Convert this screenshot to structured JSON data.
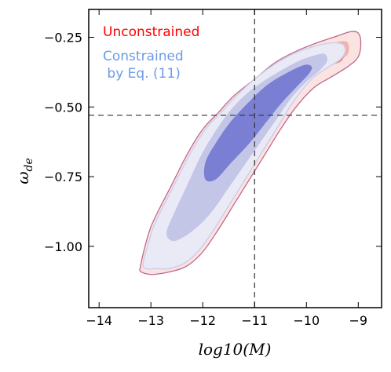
{
  "chart_data": {
    "type": "contour",
    "xlabel_base": "log10(",
    "xlabel_var": "M",
    "xlabel_close": ")",
    "ylabel_base": "ω",
    "ylabel_sub": "de",
    "xlim": [
      -14.2,
      -8.55
    ],
    "ylim": [
      -1.22,
      -0.15
    ],
    "xticks": [
      -14,
      -13,
      -12,
      -11,
      -10,
      -9
    ],
    "xtick_labels": [
      "−14",
      "−13",
      "−12",
      "−11",
      "−10",
      "−9"
    ],
    "yticks": [
      -0.25,
      -0.5,
      -0.75,
      -1.0
    ],
    "ytick_labels": [
      "−0.25",
      "−0.50",
      "−0.75",
      "−1.00"
    ],
    "reference_lines": {
      "x": -11.0,
      "y": -0.53
    },
    "legend": [
      {
        "label": "Unconstrained",
        "color": "#ff0000"
      },
      {
        "label_line1": "Constrained",
        "label_line2": " by Eq. (11)",
        "color": "#6d9be6"
      }
    ],
    "series": [
      {
        "legend_index": 0,
        "fill_colors": [
          "#fbe3e1",
          "#f6b1ad",
          "#ee8682"
        ],
        "edge_color": "#c0698d",
        "contours": [
          [
            [
              -13.2,
              -1.07
            ],
            [
              -13.1,
              -0.99
            ],
            [
              -13.0,
              -0.93
            ],
            [
              -12.85,
              -0.87
            ],
            [
              -12.6,
              -0.78
            ],
            [
              -12.3,
              -0.67
            ],
            [
              -12.0,
              -0.58
            ],
            [
              -11.7,
              -0.52
            ],
            [
              -11.4,
              -0.46
            ],
            [
              -11.0,
              -0.4
            ],
            [
              -10.6,
              -0.34
            ],
            [
              -10.2,
              -0.3
            ],
            [
              -9.8,
              -0.27
            ],
            [
              -9.4,
              -0.245
            ],
            [
              -9.15,
              -0.23
            ],
            [
              -9.0,
              -0.235
            ],
            [
              -8.95,
              -0.27
            ],
            [
              -9.0,
              -0.32
            ],
            [
              -9.2,
              -0.355
            ],
            [
              -9.5,
              -0.39
            ],
            [
              -9.85,
              -0.43
            ],
            [
              -10.2,
              -0.5
            ],
            [
              -10.5,
              -0.58
            ],
            [
              -10.8,
              -0.67
            ],
            [
              -11.1,
              -0.76
            ],
            [
              -11.4,
              -0.85
            ],
            [
              -11.7,
              -0.94
            ],
            [
              -12.0,
              -1.02
            ],
            [
              -12.3,
              -1.07
            ],
            [
              -12.6,
              -1.09
            ],
            [
              -12.9,
              -1.1
            ],
            [
              -13.05,
              -1.1
            ],
            [
              -13.2,
              -1.09
            ]
          ],
          [
            [
              -9.9,
              -0.31
            ],
            [
              -9.6,
              -0.28
            ],
            [
              -9.35,
              -0.265
            ],
            [
              -9.2,
              -0.27
            ],
            [
              -9.2,
              -0.31
            ],
            [
              -9.4,
              -0.335
            ],
            [
              -9.75,
              -0.355
            ]
          ],
          [
            [
              -9.6,
              -0.335
            ],
            [
              -9.45,
              -0.31
            ],
            [
              -9.3,
              -0.3
            ],
            [
              -9.3,
              -0.33
            ],
            [
              -9.45,
              -0.345
            ]
          ]
        ]
      },
      {
        "legend_index": 1,
        "fill_colors": [
          "#eaeaf6",
          "#c4c6e8",
          "#7a7fd4"
        ],
        "edge_color": "#c8ccea",
        "contours": [
          [
            [
              -13.15,
              -1.06
            ],
            [
              -13.05,
              -0.99
            ],
            [
              -12.95,
              -0.93
            ],
            [
              -12.8,
              -0.87
            ],
            [
              -12.55,
              -0.78
            ],
            [
              -12.25,
              -0.67
            ],
            [
              -11.95,
              -0.58
            ],
            [
              -11.65,
              -0.52
            ],
            [
              -11.35,
              -0.46
            ],
            [
              -11.0,
              -0.4
            ],
            [
              -10.6,
              -0.345
            ],
            [
              -10.2,
              -0.305
            ],
            [
              -9.8,
              -0.28
            ],
            [
              -9.5,
              -0.27
            ],
            [
              -9.3,
              -0.275
            ],
            [
              -9.25,
              -0.3
            ],
            [
              -9.35,
              -0.33
            ],
            [
              -9.6,
              -0.36
            ],
            [
              -9.9,
              -0.4
            ],
            [
              -10.25,
              -0.48
            ],
            [
              -10.55,
              -0.57
            ],
            [
              -10.85,
              -0.66
            ],
            [
              -11.15,
              -0.75
            ],
            [
              -11.45,
              -0.84
            ],
            [
              -11.75,
              -0.93
            ],
            [
              -12.05,
              -1.01
            ],
            [
              -12.35,
              -1.06
            ],
            [
              -12.65,
              -1.08
            ],
            [
              -12.9,
              -1.08
            ],
            [
              -13.1,
              -1.08
            ]
          ],
          [
            [
              -12.7,
              -0.95
            ],
            [
              -12.55,
              -0.88
            ],
            [
              -12.3,
              -0.78
            ],
            [
              -12.05,
              -0.68
            ],
            [
              -11.8,
              -0.6
            ],
            [
              -11.5,
              -0.52
            ],
            [
              -11.2,
              -0.46
            ],
            [
              -10.85,
              -0.41
            ],
            [
              -10.5,
              -0.37
            ],
            [
              -10.15,
              -0.335
            ],
            [
              -9.85,
              -0.315
            ],
            [
              -9.65,
              -0.31
            ],
            [
              -9.6,
              -0.335
            ],
            [
              -9.75,
              -0.37
            ],
            [
              -10.0,
              -0.41
            ],
            [
              -10.3,
              -0.47
            ],
            [
              -10.6,
              -0.55
            ],
            [
              -10.9,
              -0.63
            ],
            [
              -11.2,
              -0.71
            ],
            [
              -11.5,
              -0.79
            ],
            [
              -11.8,
              -0.87
            ],
            [
              -12.1,
              -0.93
            ],
            [
              -12.4,
              -0.97
            ],
            [
              -12.6,
              -0.98
            ]
          ],
          [
            [
              -11.95,
              -0.76
            ],
            [
              -11.95,
              -0.7
            ],
            [
              -11.75,
              -0.63
            ],
            [
              -11.45,
              -0.55
            ],
            [
              -11.1,
              -0.48
            ],
            [
              -10.75,
              -0.42
            ],
            [
              -10.4,
              -0.38
            ],
            [
              -10.05,
              -0.35
            ],
            [
              -9.9,
              -0.355
            ],
            [
              -9.95,
              -0.38
            ],
            [
              -10.2,
              -0.43
            ],
            [
              -10.5,
              -0.49
            ],
            [
              -10.8,
              -0.56
            ],
            [
              -11.1,
              -0.63
            ],
            [
              -11.45,
              -0.7
            ],
            [
              -11.75,
              -0.76
            ]
          ]
        ]
      }
    ]
  }
}
